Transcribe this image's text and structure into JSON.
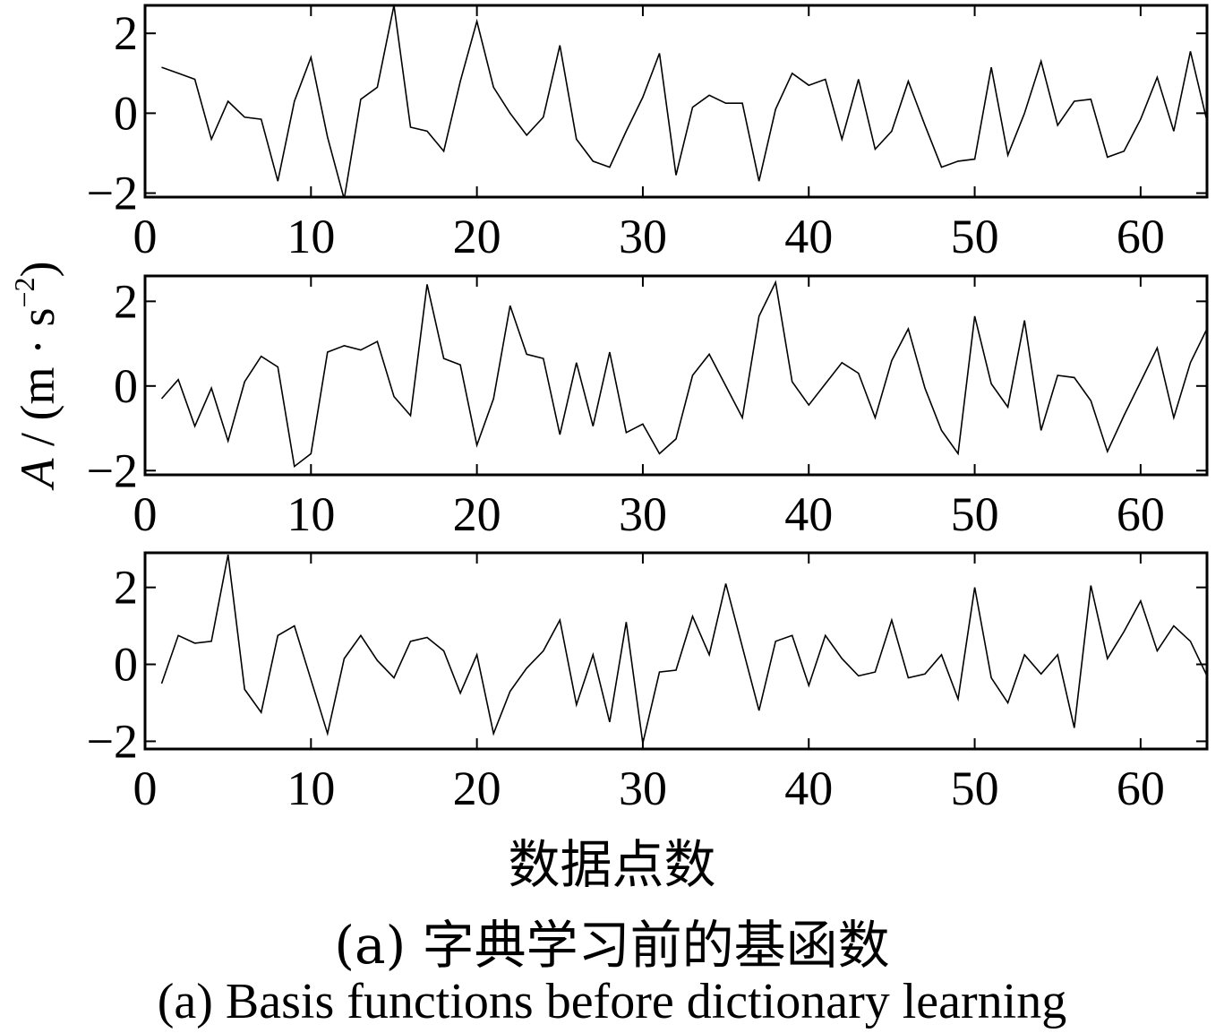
{
  "chart_data": {
    "type": "line",
    "ylabel": {
      "symbol": "A",
      "sep": " / (m · s",
      "exp": "−2",
      "close": ")"
    },
    "xlabel": "数据点数",
    "caption_zh": "(a)  字典学习前的基函数",
    "caption_en": "(a)  Basis functions before dictionary learning",
    "subplots": [
      {
        "xlim": [
          0,
          64
        ],
        "ylim": [
          -2.1,
          2.7
        ],
        "xticks": [
          "0",
          "10",
          "20",
          "30",
          "40",
          "50",
          "60"
        ],
        "yticks": [
          "−2",
          "0",
          "2"
        ],
        "x": [
          1,
          2,
          3,
          4,
          5,
          6,
          7,
          8,
          9,
          10,
          11,
          12,
          13,
          14,
          15,
          16,
          17,
          18,
          19,
          20,
          21,
          22,
          23,
          24,
          25,
          26,
          27,
          28,
          29,
          30,
          31,
          32,
          33,
          34,
          35,
          36,
          37,
          38,
          39,
          40,
          41,
          42,
          43,
          44,
          45,
          46,
          47,
          48,
          49,
          50,
          51,
          52,
          53,
          54,
          55,
          56,
          57,
          58,
          59,
          60,
          61,
          62,
          63,
          64
        ],
        "values": [
          1.15,
          1.0,
          0.85,
          -0.65,
          0.3,
          -0.1,
          -0.15,
          -1.7,
          0.3,
          1.4,
          -0.6,
          -2.15,
          0.35,
          0.65,
          2.7,
          -0.35,
          -0.45,
          -0.95,
          0.8,
          2.3,
          0.65,
          0.0,
          -0.55,
          -0.1,
          1.7,
          -0.65,
          -1.2,
          -1.35,
          -0.45,
          0.4,
          1.5,
          -1.55,
          0.15,
          0.45,
          0.25,
          0.25,
          -1.7,
          0.1,
          1.0,
          0.7,
          0.85,
          -0.65,
          0.85,
          -0.9,
          -0.45,
          0.8,
          -0.3,
          -1.35,
          -1.2,
          -1.15,
          1.15,
          -1.05,
          0.0,
          1.3,
          -0.3,
          0.3,
          0.35,
          -1.1,
          -0.95,
          -0.15,
          0.9,
          -0.45,
          1.55,
          -0.2
        ]
      },
      {
        "xlim": [
          0,
          64
        ],
        "ylim": [
          -2.1,
          2.6
        ],
        "xticks": [
          "0",
          "10",
          "20",
          "30",
          "40",
          "50",
          "60"
        ],
        "yticks": [
          "−2",
          "0",
          "2"
        ],
        "x": [
          1,
          2,
          3,
          4,
          5,
          6,
          7,
          8,
          9,
          10,
          11,
          12,
          13,
          14,
          15,
          16,
          17,
          18,
          19,
          20,
          21,
          22,
          23,
          24,
          25,
          26,
          27,
          28,
          29,
          30,
          31,
          32,
          33,
          34,
          35,
          36,
          37,
          38,
          39,
          40,
          41,
          42,
          43,
          44,
          45,
          46,
          47,
          48,
          49,
          50,
          51,
          52,
          53,
          54,
          55,
          56,
          57,
          58,
          59,
          60,
          61,
          62,
          63,
          64
        ],
        "values": [
          -0.3,
          0.15,
          -0.95,
          -0.05,
          -1.3,
          0.1,
          0.7,
          0.45,
          -1.9,
          -1.6,
          0.8,
          0.95,
          0.85,
          1.05,
          -0.25,
          -0.7,
          2.4,
          0.65,
          0.5,
          -1.4,
          -0.3,
          1.9,
          0.75,
          0.65,
          -1.15,
          0.55,
          -0.95,
          0.8,
          -1.1,
          -0.9,
          -1.6,
          -1.25,
          0.25,
          0.75,
          0.0,
          -0.75,
          1.65,
          2.45,
          0.1,
          -0.45,
          0.05,
          0.55,
          0.3,
          -0.75,
          0.6,
          1.35,
          -0.05,
          -1.05,
          -1.6,
          1.65,
          0.05,
          -0.5,
          1.55,
          -1.05,
          0.25,
          0.2,
          -0.35,
          -1.55,
          -0.7,
          0.1,
          0.9,
          -0.75,
          0.55,
          1.35
        ]
      },
      {
        "xlim": [
          0,
          64
        ],
        "ylim": [
          -2.2,
          2.9
        ],
        "xticks": [
          "0",
          "10",
          "20",
          "30",
          "40",
          "50",
          "60"
        ],
        "yticks": [
          "−2",
          "0",
          "2"
        ],
        "x": [
          1,
          2,
          3,
          4,
          5,
          6,
          7,
          8,
          9,
          10,
          11,
          12,
          13,
          14,
          15,
          16,
          17,
          18,
          19,
          20,
          21,
          22,
          23,
          24,
          25,
          26,
          27,
          28,
          29,
          30,
          31,
          32,
          33,
          34,
          35,
          36,
          37,
          38,
          39,
          40,
          41,
          42,
          43,
          44,
          45,
          46,
          47,
          48,
          49,
          50,
          51,
          52,
          53,
          54,
          55,
          56,
          57,
          58,
          59,
          60,
          61,
          62,
          63,
          64
        ],
        "values": [
          -0.5,
          0.75,
          0.55,
          0.6,
          2.85,
          -0.65,
          -1.25,
          0.75,
          1.0,
          -0.4,
          -1.8,
          0.15,
          0.75,
          0.1,
          -0.35,
          0.6,
          0.7,
          0.35,
          -0.75,
          0.25,
          -1.8,
          -0.7,
          -0.1,
          0.35,
          1.15,
          -1.05,
          0.25,
          -1.5,
          1.1,
          -2.05,
          -0.2,
          -0.15,
          1.25,
          0.25,
          2.1,
          0.45,
          -1.2,
          0.6,
          0.75,
          -0.55,
          0.75,
          0.15,
          -0.3,
          -0.2,
          1.15,
          -0.35,
          -0.25,
          0.25,
          -0.9,
          2.0,
          -0.35,
          -1.0,
          0.25,
          -0.25,
          0.25,
          -1.65,
          2.05,
          0.15,
          0.85,
          1.65,
          0.35,
          1.0,
          0.6,
          -0.3
        ]
      }
    ]
  }
}
